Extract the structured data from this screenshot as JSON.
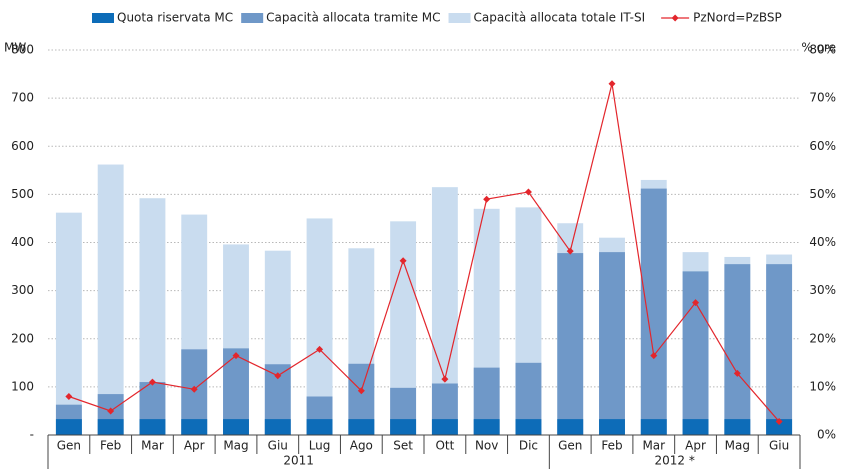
{
  "chart_data": {
    "type": "bar",
    "y_label": "MW",
    "y2_label": "% ore",
    "groups": [
      {
        "label": "2011",
        "categories": [
          "Gen",
          "Feb",
          "Mar",
          "Apr",
          "Mag",
          "Giu",
          "Lug",
          "Ago",
          "Set",
          "Ott",
          "Nov",
          "Dic"
        ]
      },
      {
        "label": "2012 *",
        "categories": [
          "Gen",
          "Feb",
          "Mar",
          "Apr",
          "Mag",
          "Giu"
        ]
      }
    ],
    "series": [
      {
        "name": "Capacità allocata totale IT-SI",
        "color": "#c9dcef",
        "values": [
          462,
          562,
          492,
          458,
          396,
          383,
          450,
          388,
          444,
          515,
          470,
          473,
          440,
          410,
          530,
          380,
          370,
          375
        ]
      },
      {
        "name": "Capacità allocata tramite MC",
        "color": "#6f98c8",
        "values": [
          63,
          85,
          110,
          178,
          180,
          147,
          80,
          148,
          98,
          107,
          140,
          150,
          378,
          380,
          512,
          340,
          355,
          355
        ]
      },
      {
        "name": "Quota riservata MC",
        "color": "#0d6cb8",
        "values": [
          33,
          33,
          33,
          33,
          33,
          33,
          33,
          33,
          33,
          33,
          33,
          33,
          33,
          33,
          33,
          33,
          33,
          33
        ]
      },
      {
        "name": "PzNord=PzBSP",
        "color": "#e3262c",
        "type": "line",
        "axis": "y2",
        "values": [
          8,
          5,
          11,
          9.5,
          16.5,
          12.3,
          17.8,
          9.2,
          36.2,
          11.6,
          49,
          50.5,
          38.2,
          73,
          16.5,
          27.5,
          12.8,
          2.8
        ]
      }
    ],
    "legend_order": [
      2,
      1,
      0,
      3
    ],
    "ylim": [
      0,
      800
    ],
    "yticks": [
      {
        "value": 0,
        "label": "-"
      },
      100,
      200,
      300,
      400,
      500,
      600,
      700,
      800
    ],
    "y2lim": [
      0,
      80
    ],
    "y2ticks": [
      {
        "value": 0,
        "label": "0%"
      },
      {
        "value": 10,
        "label": "10%"
      },
      {
        "value": 20,
        "label": "20%"
      },
      {
        "value": 30,
        "label": "30%"
      },
      {
        "value": 40,
        "label": "40%"
      },
      {
        "value": 50,
        "label": "50%"
      },
      {
        "value": 60,
        "label": "60%"
      },
      {
        "value": 70,
        "label": "70%"
      },
      {
        "value": 80,
        "label": "80%"
      }
    ],
    "grid": true
  }
}
